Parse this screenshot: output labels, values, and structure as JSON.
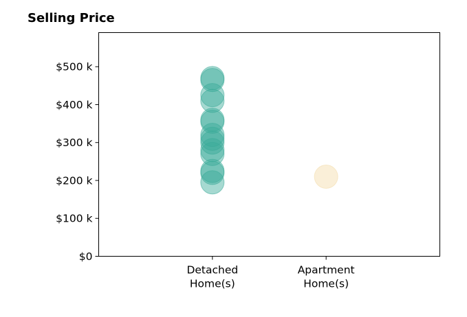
{
  "chart_data": {
    "type": "scatter",
    "title": "Selling Price",
    "xlabel": "",
    "ylabel": "",
    "categories": [
      [
        "Detached",
        "Home(s)"
      ],
      [
        "Apartment",
        "Home(s)"
      ]
    ],
    "y_ticks": [
      {
        "value": 0,
        "label": "$0"
      },
      {
        "value": 100,
        "label": "$100 k"
      },
      {
        "value": 200,
        "label": "$200 k"
      },
      {
        "value": 300,
        "label": "$300 k"
      },
      {
        "value": 400,
        "label": "$400 k"
      },
      {
        "value": 500,
        "label": "$500 k"
      }
    ],
    "y_unit": "thousands of dollars",
    "ylim": [
      0,
      590
    ],
    "xlim": [
      0,
      3
    ],
    "grid": false,
    "series": [
      {
        "category_index": 0,
        "color": "#3aaa98",
        "values": [
          195,
          220,
          225,
          270,
          280,
          300,
          310,
          320,
          355,
          360,
          410,
          425,
          465,
          470
        ]
      },
      {
        "category_index": 1,
        "color": "#f3dba8",
        "values": [
          210
        ]
      }
    ]
  }
}
